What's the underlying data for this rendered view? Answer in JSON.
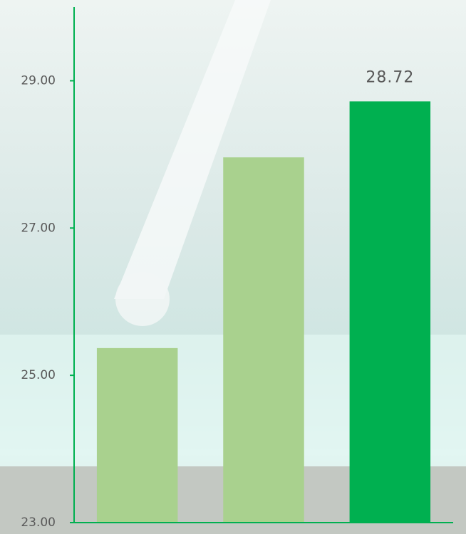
{
  "chart_data": {
    "type": "bar",
    "categories": [
      null,
      null,
      null
    ],
    "values": [
      25.37,
      27.96,
      28.72
    ],
    "value_labels": [
      null,
      null,
      "28.72"
    ],
    "colors": [
      "#a9d18e",
      "#a9d18e",
      "#00b050"
    ],
    "axis_color": "#00b050",
    "ylim": [
      23,
      30
    ],
    "yticks": [
      {
        "value": 23,
        "label": "23.00"
      },
      {
        "value": 25,
        "label": "25.00"
      },
      {
        "value": 27,
        "label": "27.00"
      },
      {
        "value": 29,
        "label": "29.00"
      }
    ],
    "grid": false
  }
}
